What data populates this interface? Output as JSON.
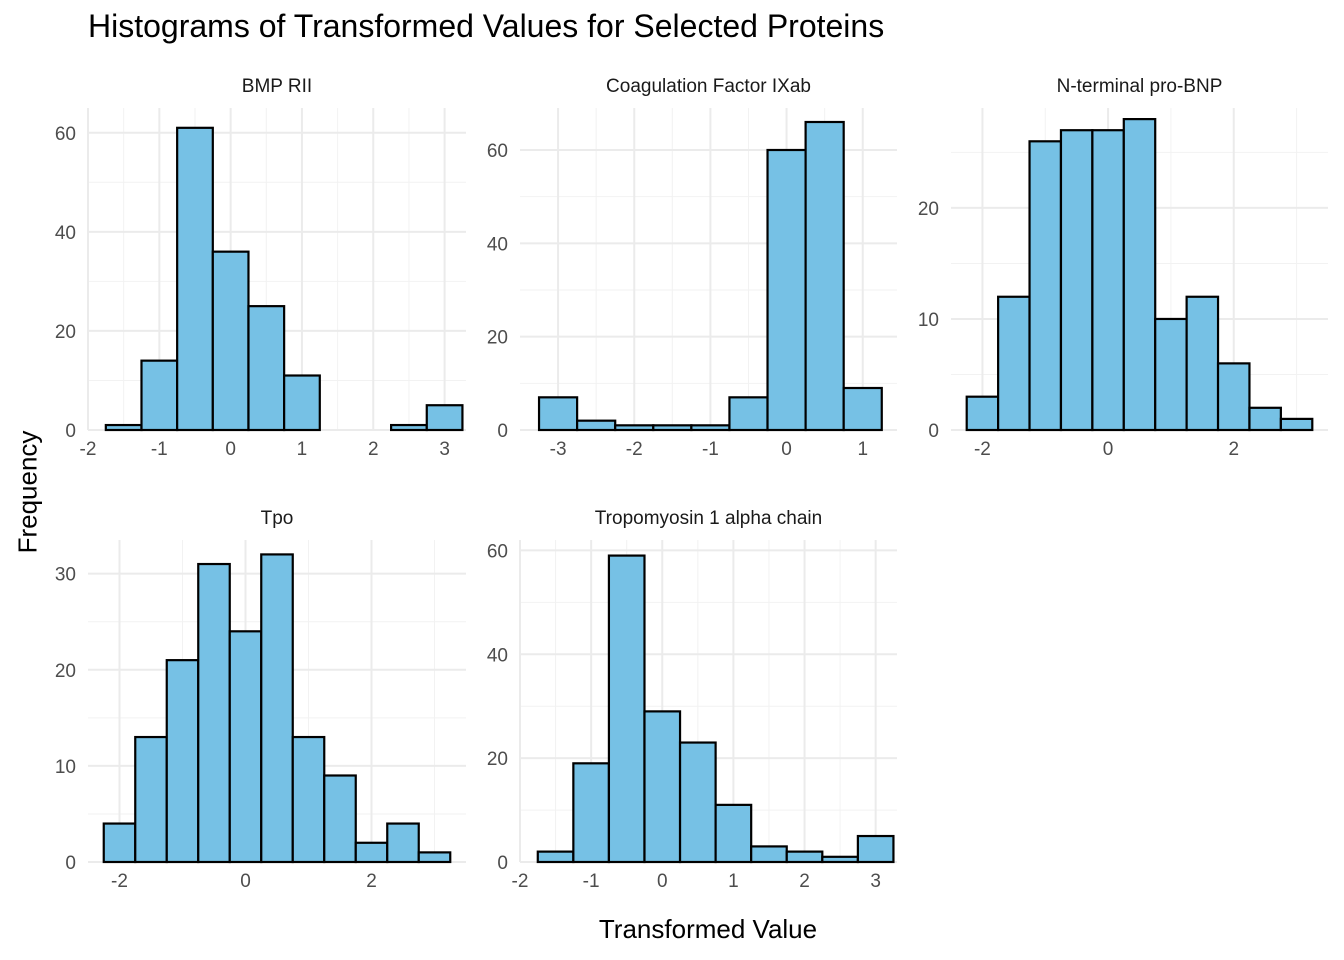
{
  "chart_data": {
    "type": "bar",
    "title": "Histograms of Transformed Values for Selected Proteins",
    "xlabel": "Transformed Value",
    "ylabel": "Frequency",
    "bar_color": "#76C1E5",
    "bar_outline": "#000000",
    "grid": true,
    "panels": [
      {
        "name": "BMP RII",
        "xlim": [
          -2.0,
          3.3
        ],
        "ylim": [
          0,
          65
        ],
        "xticks": [
          -2,
          -1,
          0,
          1,
          2,
          3
        ],
        "yticks": [
          0,
          20,
          40,
          60
        ],
        "bins": [
          {
            "x0": -1.75,
            "x1": -1.25,
            "count": 1
          },
          {
            "x0": -1.25,
            "x1": -0.75,
            "count": 14
          },
          {
            "x0": -0.75,
            "x1": -0.25,
            "count": 61
          },
          {
            "x0": -0.25,
            "x1": 0.25,
            "count": 36
          },
          {
            "x0": 0.25,
            "x1": 0.75,
            "count": 25
          },
          {
            "x0": 0.75,
            "x1": 1.25,
            "count": 11
          },
          {
            "x0": 1.25,
            "x1": 1.75,
            "count": 0
          },
          {
            "x0": 1.75,
            "x1": 2.25,
            "count": 0
          },
          {
            "x0": 2.25,
            "x1": 2.75,
            "count": 1
          },
          {
            "x0": 2.75,
            "x1": 3.25,
            "count": 5
          }
        ]
      },
      {
        "name": "Coagulation Factor IXab",
        "xlim": [
          -3.5,
          1.45
        ],
        "ylim": [
          0,
          69
        ],
        "xticks": [
          -3,
          -2,
          -1,
          0,
          1
        ],
        "yticks": [
          0,
          20,
          40,
          60
        ],
        "bins": [
          {
            "x0": -3.25,
            "x1": -2.75,
            "count": 7
          },
          {
            "x0": -2.75,
            "x1": -2.25,
            "count": 2
          },
          {
            "x0": -2.25,
            "x1": -1.75,
            "count": 1
          },
          {
            "x0": -1.75,
            "x1": -1.25,
            "count": 1
          },
          {
            "x0": -1.25,
            "x1": -0.75,
            "count": 1
          },
          {
            "x0": -0.75,
            "x1": -0.25,
            "count": 7
          },
          {
            "x0": -0.25,
            "x1": 0.25,
            "count": 60
          },
          {
            "x0": 0.25,
            "x1": 0.75,
            "count": 66
          },
          {
            "x0": 0.75,
            "x1": 1.25,
            "count": 9
          }
        ]
      },
      {
        "name": "N-terminal pro-BNP",
        "xlim": [
          -2.5,
          3.5
        ],
        "ylim": [
          0,
          29
        ],
        "xticks": [
          -2,
          0,
          2
        ],
        "yticks": [
          0,
          10,
          20
        ],
        "bins": [
          {
            "x0": -2.25,
            "x1": -1.75,
            "count": 3
          },
          {
            "x0": -1.75,
            "x1": -1.25,
            "count": 12
          },
          {
            "x0": -1.25,
            "x1": -0.75,
            "count": 26
          },
          {
            "x0": -0.75,
            "x1": -0.25,
            "count": 27
          },
          {
            "x0": -0.25,
            "x1": 0.25,
            "count": 27
          },
          {
            "x0": 0.25,
            "x1": 0.75,
            "count": 28
          },
          {
            "x0": 0.75,
            "x1": 1.25,
            "count": 10
          },
          {
            "x0": 1.25,
            "x1": 1.75,
            "count": 12
          },
          {
            "x0": 1.75,
            "x1": 2.25,
            "count": 6
          },
          {
            "x0": 2.25,
            "x1": 2.75,
            "count": 2
          },
          {
            "x0": 2.75,
            "x1": 3.25,
            "count": 1
          }
        ]
      },
      {
        "name": "Tpo",
        "xlim": [
          -2.5,
          3.5
        ],
        "ylim": [
          0,
          33.5
        ],
        "xticks": [
          -2,
          0,
          2
        ],
        "yticks": [
          0,
          10,
          20,
          30
        ],
        "bins": [
          {
            "x0": -2.25,
            "x1": -1.75,
            "count": 4
          },
          {
            "x0": -1.75,
            "x1": -1.25,
            "count": 13
          },
          {
            "x0": -1.25,
            "x1": -0.75,
            "count": 21
          },
          {
            "x0": -0.75,
            "x1": -0.25,
            "count": 31
          },
          {
            "x0": -0.25,
            "x1": 0.25,
            "count": 24
          },
          {
            "x0": 0.25,
            "x1": 0.75,
            "count": 32
          },
          {
            "x0": 0.75,
            "x1": 1.25,
            "count": 13
          },
          {
            "x0": 1.25,
            "x1": 1.75,
            "count": 9
          },
          {
            "x0": 1.75,
            "x1": 2.25,
            "count": 2
          },
          {
            "x0": 2.25,
            "x1": 2.75,
            "count": 4
          },
          {
            "x0": 2.75,
            "x1": 3.25,
            "count": 1
          }
        ]
      },
      {
        "name": "Tropomyosin 1 alpha chain",
        "xlim": [
          -2.0,
          3.3
        ],
        "ylim": [
          0,
          62
        ],
        "xticks": [
          -2,
          -1,
          0,
          1,
          2,
          3
        ],
        "yticks": [
          0,
          20,
          40,
          60
        ],
        "bins": [
          {
            "x0": -1.75,
            "x1": -1.25,
            "count": 2
          },
          {
            "x0": -1.25,
            "x1": -0.75,
            "count": 19
          },
          {
            "x0": -0.75,
            "x1": -0.25,
            "count": 59
          },
          {
            "x0": -0.25,
            "x1": 0.25,
            "count": 29
          },
          {
            "x0": 0.25,
            "x1": 0.75,
            "count": 23
          },
          {
            "x0": 0.75,
            "x1": 1.25,
            "count": 11
          },
          {
            "x0": 1.25,
            "x1": 1.75,
            "count": 3
          },
          {
            "x0": 1.75,
            "x1": 2.25,
            "count": 2
          },
          {
            "x0": 2.25,
            "x1": 2.75,
            "count": 1
          },
          {
            "x0": 2.75,
            "x1": 3.25,
            "count": 5
          }
        ]
      }
    ]
  }
}
